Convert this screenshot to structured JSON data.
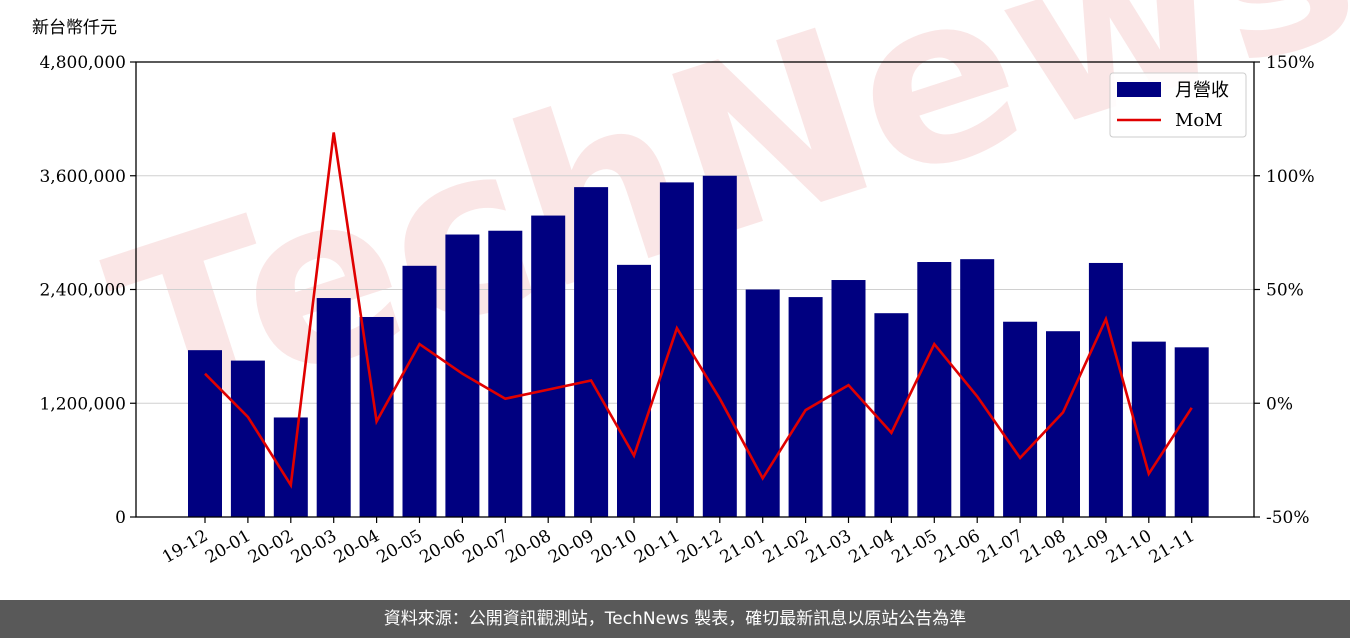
{
  "chart_data": {
    "type": "bar",
    "categories": [
      "19-12",
      "20-01",
      "20-02",
      "20-03",
      "20-04",
      "20-05",
      "20-06",
      "20-07",
      "20-08",
      "20-09",
      "20-10",
      "20-11",
      "20-12",
      "21-01",
      "21-02",
      "21-03",
      "21-04",
      "21-05",
      "21-06",
      "21-07",
      "21-08",
      "21-09",
      "21-10",
      "21-11"
    ],
    "series": [
      {
        "name": "月營收",
        "type": "bar",
        "axis": "left",
        "color": "#000080",
        "values": [
          1760000,
          1650000,
          1050000,
          2310000,
          2110000,
          2650000,
          2980000,
          3020000,
          3180000,
          3480000,
          2660000,
          3530000,
          3600000,
          2400000,
          2320000,
          2500000,
          2150000,
          2690000,
          2720000,
          2060000,
          1960000,
          2680000,
          1850000,
          1790000
        ]
      },
      {
        "name": "MoM",
        "type": "line",
        "axis": "right",
        "color": "#e00000",
        "values": [
          13,
          -6,
          -36,
          119,
          -8,
          26,
          13,
          2,
          6,
          10,
          -23,
          33,
          2,
          -33,
          -3,
          8,
          -13,
          26,
          3,
          -24,
          -4,
          37,
          -31,
          -2
        ]
      }
    ],
    "y_left": {
      "unit": "新台幣仟元",
      "ylim": [
        0,
        4800000
      ],
      "ticks": [
        "0",
        "1,200,000",
        "2,400,000",
        "3,600,000",
        "4,800,000"
      ]
    },
    "y_right": {
      "ylim": [
        -50,
        150
      ],
      "ticks": [
        "-50%",
        "0%",
        "50%",
        "100%",
        "150%"
      ]
    },
    "grid": true,
    "legend": "top-right",
    "watermark": "TechNews"
  },
  "footer": "資料來源：公開資訊觀測站，TechNews 製表，確切最新訊息以原站公告為準"
}
